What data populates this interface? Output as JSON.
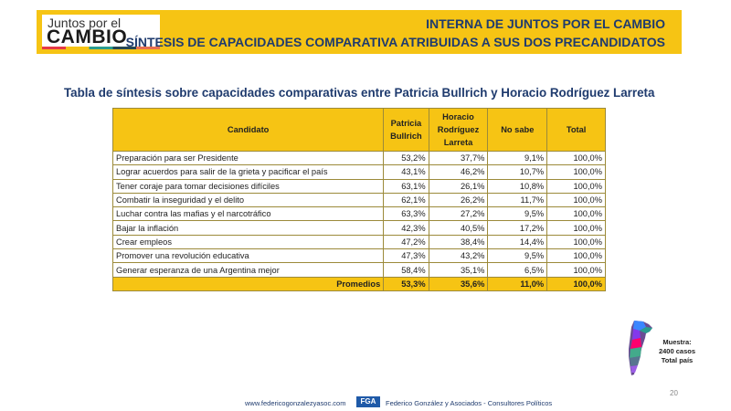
{
  "header": {
    "logo_top": "Juntos por el",
    "logo_main": "CAMBIO",
    "title_line1": "INTERNA DE JUNTOS POR EL CAMBIO",
    "title_line2": "SÍNTESIS DE CAPACIDADES COMPARATIVA ATRIBUIDAS A SUS DOS PRECANDIDATOS"
  },
  "subtitle": "Tabla de síntesis sobre capacidades comparativas entre Patricia Bullrich y Horacio Rodríguez Larreta",
  "table": {
    "headers": {
      "candidate": "Candidato",
      "bullrich": [
        "Patricia",
        "Bullrich"
      ],
      "larreta": [
        "Horacio",
        "Rodríguez",
        "Larreta"
      ],
      "no_sabe": "No sabe",
      "total": "Total"
    },
    "rows": [
      {
        "label": "Preparación para ser Presidente",
        "bullrich": "53,2%",
        "larreta": "37,7%",
        "no_sabe": "9,1%",
        "total": "100,0%"
      },
      {
        "label": "Lograr acuerdos para salir de la grieta y pacificar el país",
        "bullrich": "43,1%",
        "larreta": "46,2%",
        "no_sabe": "10,7%",
        "total": "100,0%"
      },
      {
        "label": "Tener coraje para tomar decisiones difíciles",
        "bullrich": "63,1%",
        "larreta": "26,1%",
        "no_sabe": "10,8%",
        "total": "100,0%"
      },
      {
        "label": "Combatir la inseguridad y el delito",
        "bullrich": "62,1%",
        "larreta": "26,2%",
        "no_sabe": "11,7%",
        "total": "100,0%"
      },
      {
        "label": "Luchar contra las mafias y el narcotráfico",
        "bullrich": "63,3%",
        "larreta": "27,2%",
        "no_sabe": "9,5%",
        "total": "100,0%"
      },
      {
        "label": "Bajar la inflación",
        "bullrich": "42,3%",
        "larreta": "40,5%",
        "no_sabe": "17,2%",
        "total": "100,0%"
      },
      {
        "label": "Crear empleos",
        "bullrich": "47,2%",
        "larreta": "38,4%",
        "no_sabe": "14,4%",
        "total": "100,0%"
      },
      {
        "label": "Promover una revolución educativa",
        "bullrich": "47,3%",
        "larreta": "43,2%",
        "no_sabe": "9,5%",
        "total": "100,0%"
      },
      {
        "label": "Generar esperanza de una Argentina mejor",
        "bullrich": "58,4%",
        "larreta": "35,1%",
        "no_sabe": "6,5%",
        "total": "100,0%"
      }
    ],
    "footer": {
      "label": "Promedios",
      "bullrich": "53,3%",
      "larreta": "35,6%",
      "no_sabe": "11,0%",
      "total": "100,0%"
    }
  },
  "sample": {
    "line1": "Muestra:",
    "line2": "2400 casos",
    "line3": "Total país"
  },
  "footer": {
    "url": "www.federicogonzalezyasoc.com",
    "logo_text": "FGA",
    "firm": "Federico González y Asociados - Consultores Políticos"
  },
  "page_number": "20"
}
